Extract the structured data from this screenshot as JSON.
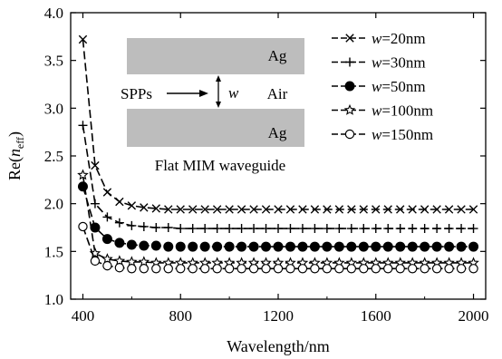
{
  "chart_data": {
    "type": "line",
    "xlabel": "Wavelength/nm",
    "ylabel_main": "Re(",
    "ylabel_italic": "n",
    "ylabel_sub": "eff",
    "ylabel_close": ")",
    "xlim": [
      350,
      2050
    ],
    "ylim": [
      1.0,
      4.0
    ],
    "xticks": [
      400,
      800,
      1200,
      1600,
      2000
    ],
    "yticks": [
      1.0,
      1.5,
      2.0,
      2.5,
      3.0,
      3.5,
      4.0
    ],
    "xtick_labels": [
      "400",
      "800",
      "1200",
      "1600",
      "2000"
    ],
    "ytick_labels": [
      "1.0",
      "1.5",
      "2.0",
      "2.5",
      "3.0",
      "3.5",
      "4.0"
    ],
    "grid": false,
    "legend_position": "top-right",
    "x": [
      400,
      450,
      500,
      550,
      600,
      650,
      700,
      750,
      800,
      850,
      900,
      950,
      1000,
      1050,
      1100,
      1150,
      1200,
      1250,
      1300,
      1350,
      1400,
      1450,
      1500,
      1550,
      1600,
      1650,
      1700,
      1750,
      1800,
      1850,
      1900,
      1950,
      2000
    ],
    "series": [
      {
        "name": "w=20nm",
        "width": "20",
        "marker": "x",
        "values": [
          3.72,
          2.4,
          2.12,
          2.02,
          1.98,
          1.96,
          1.95,
          1.94,
          1.94,
          1.94,
          1.94,
          1.94,
          1.94,
          1.94,
          1.94,
          1.94,
          1.94,
          1.94,
          1.94,
          1.94,
          1.94,
          1.94,
          1.94,
          1.94,
          1.94,
          1.94,
          1.94,
          1.94,
          1.94,
          1.94,
          1.94,
          1.94,
          1.94
        ]
      },
      {
        "name": "w=30nm",
        "width": "30",
        "marker": "plus",
        "values": [
          2.82,
          2.0,
          1.86,
          1.8,
          1.77,
          1.76,
          1.75,
          1.75,
          1.74,
          1.74,
          1.74,
          1.74,
          1.74,
          1.74,
          1.74,
          1.74,
          1.74,
          1.74,
          1.74,
          1.74,
          1.74,
          1.74,
          1.74,
          1.74,
          1.74,
          1.74,
          1.74,
          1.74,
          1.74,
          1.74,
          1.74,
          1.74,
          1.74
        ]
      },
      {
        "name": "w=50nm",
        "width": "50",
        "marker": "circle-filled",
        "values": [
          2.18,
          1.75,
          1.63,
          1.59,
          1.57,
          1.56,
          1.56,
          1.55,
          1.55,
          1.55,
          1.55,
          1.55,
          1.55,
          1.55,
          1.55,
          1.55,
          1.55,
          1.55,
          1.55,
          1.55,
          1.55,
          1.55,
          1.55,
          1.55,
          1.55,
          1.55,
          1.55,
          1.55,
          1.55,
          1.55,
          1.55,
          1.55,
          1.55
        ]
      },
      {
        "name": "w=100nm",
        "width": "100",
        "marker": "star",
        "values": [
          2.3,
          1.48,
          1.42,
          1.4,
          1.39,
          1.39,
          1.38,
          1.38,
          1.38,
          1.38,
          1.38,
          1.38,
          1.38,
          1.38,
          1.38,
          1.38,
          1.38,
          1.38,
          1.38,
          1.38,
          1.38,
          1.38,
          1.38,
          1.38,
          1.38,
          1.38,
          1.38,
          1.38,
          1.38,
          1.38,
          1.38,
          1.38,
          1.38
        ]
      },
      {
        "name": "w=150nm",
        "width": "150",
        "marker": "circle-open",
        "values": [
          1.76,
          1.4,
          1.35,
          1.33,
          1.32,
          1.32,
          1.32,
          1.32,
          1.32,
          1.32,
          1.32,
          1.32,
          1.32,
          1.32,
          1.32,
          1.32,
          1.32,
          1.32,
          1.32,
          1.32,
          1.32,
          1.32,
          1.32,
          1.32,
          1.32,
          1.32,
          1.32,
          1.32,
          1.32,
          1.32,
          1.32,
          1.32,
          1.32
        ]
      }
    ],
    "legend_prefix": "w",
    "legend_suffix": "nm",
    "inset": {
      "top_metal": "Ag",
      "bottom_metal": "Ag",
      "gap_medium": "Air",
      "wave_label": "SPPs",
      "gap_label": "w",
      "caption": "Flat MIM waveguide",
      "metal_color": "#bdbdbd"
    }
  }
}
